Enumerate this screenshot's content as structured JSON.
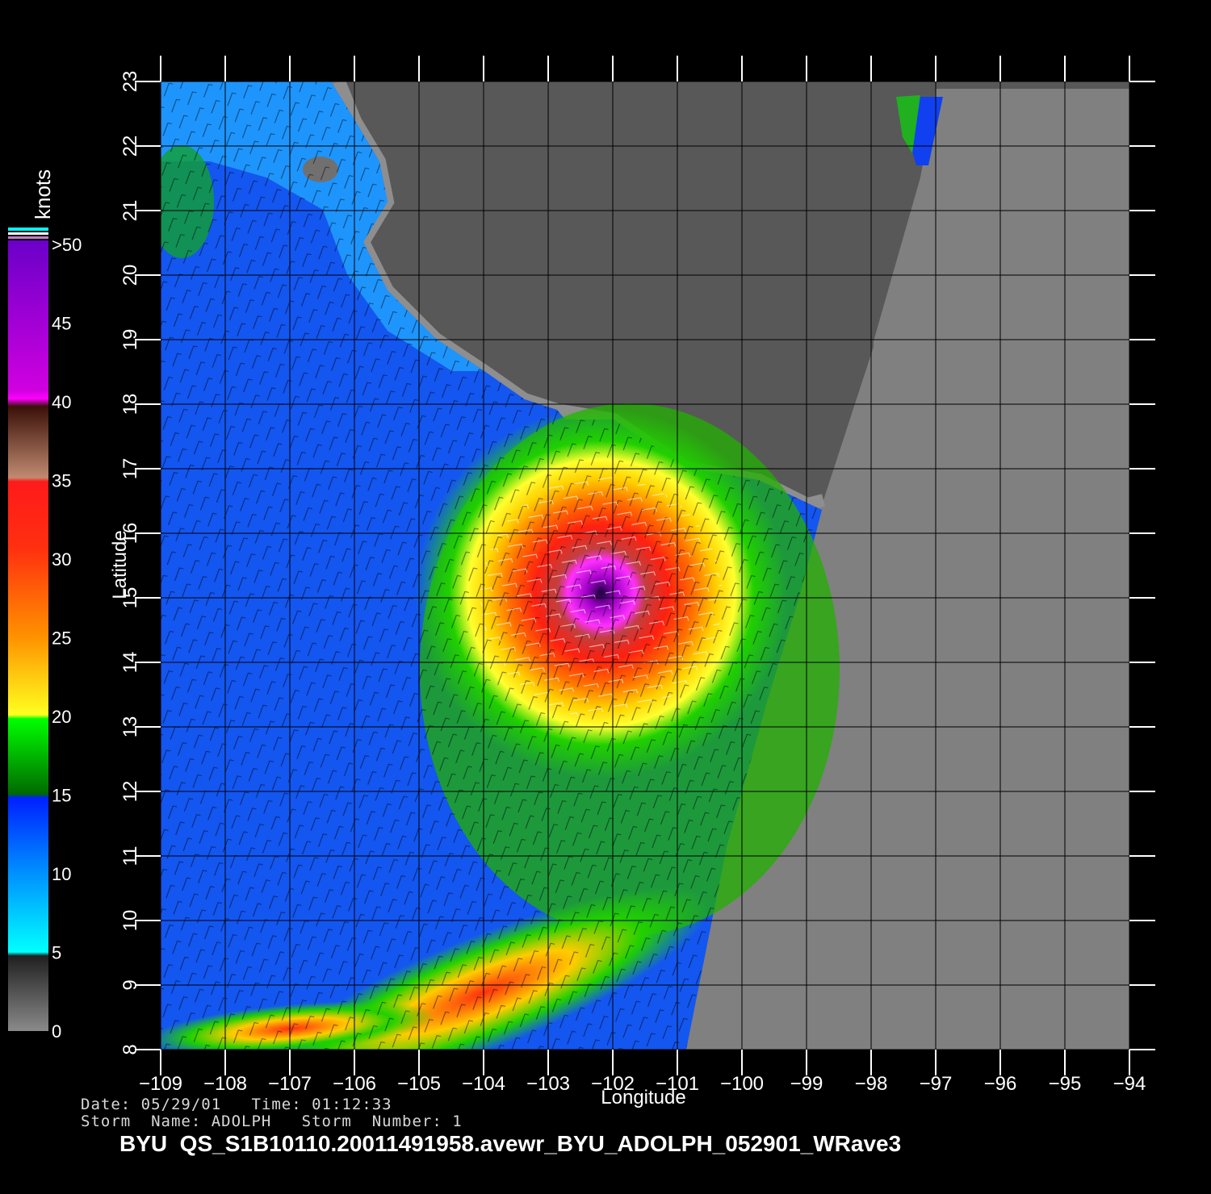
{
  "map": {
    "lon_min": -109,
    "lon_max": -94,
    "lat_min": 8,
    "lat_max": 23,
    "x_ticks": [
      "−109",
      "−108",
      "−107",
      "−106",
      "−105",
      "−104",
      "−103",
      "−102",
      "−101",
      "−100",
      "−99",
      "−98",
      "−97",
      "−96",
      "−95",
      "−94"
    ],
    "y_ticks": [
      "8",
      "9",
      "10",
      "11",
      "12",
      "13",
      "14",
      "15",
      "16",
      "17",
      "18",
      "19",
      "20",
      "21",
      "22",
      "23"
    ],
    "xlabel": "Longitude",
    "ylabel": "Latitude",
    "storm_center": {
      "lon": -102.3,
      "lat": 15.1
    },
    "max_wind_knots": 50,
    "colors": {
      "land": "#555555",
      "coast": "#8a8a8a",
      "no_data": "#808080",
      "grid": "#000000",
      "tick": "#ffffff"
    }
  },
  "colorbar": {
    "unit": "knots",
    "labels": [
      ">50",
      "45",
      "40",
      "35",
      "30",
      "25",
      "20",
      "15",
      "10",
      "5",
      "0"
    ],
    "stops": [
      "#7a00c0",
      "#b000d0",
      "#ff00ff",
      "#4a1a10",
      "#c08060",
      "#ff2020",
      "#ff7000",
      "#ffcc00",
      "#ffff20",
      "#00ff00",
      "#007000",
      "#0020ff",
      "#0080ff",
      "#00ffff",
      "#303030",
      "#808080"
    ]
  },
  "info": {
    "date_line": "Date: 05/29/01   Time: 01:12:33",
    "storm_line": "Storm  Name: ADOLPH   Storm  Number: 1",
    "file_title": "BYU  QS_S1B10110.20011491958.avewr_BYU_ADOLPH_052901_WRave3"
  }
}
